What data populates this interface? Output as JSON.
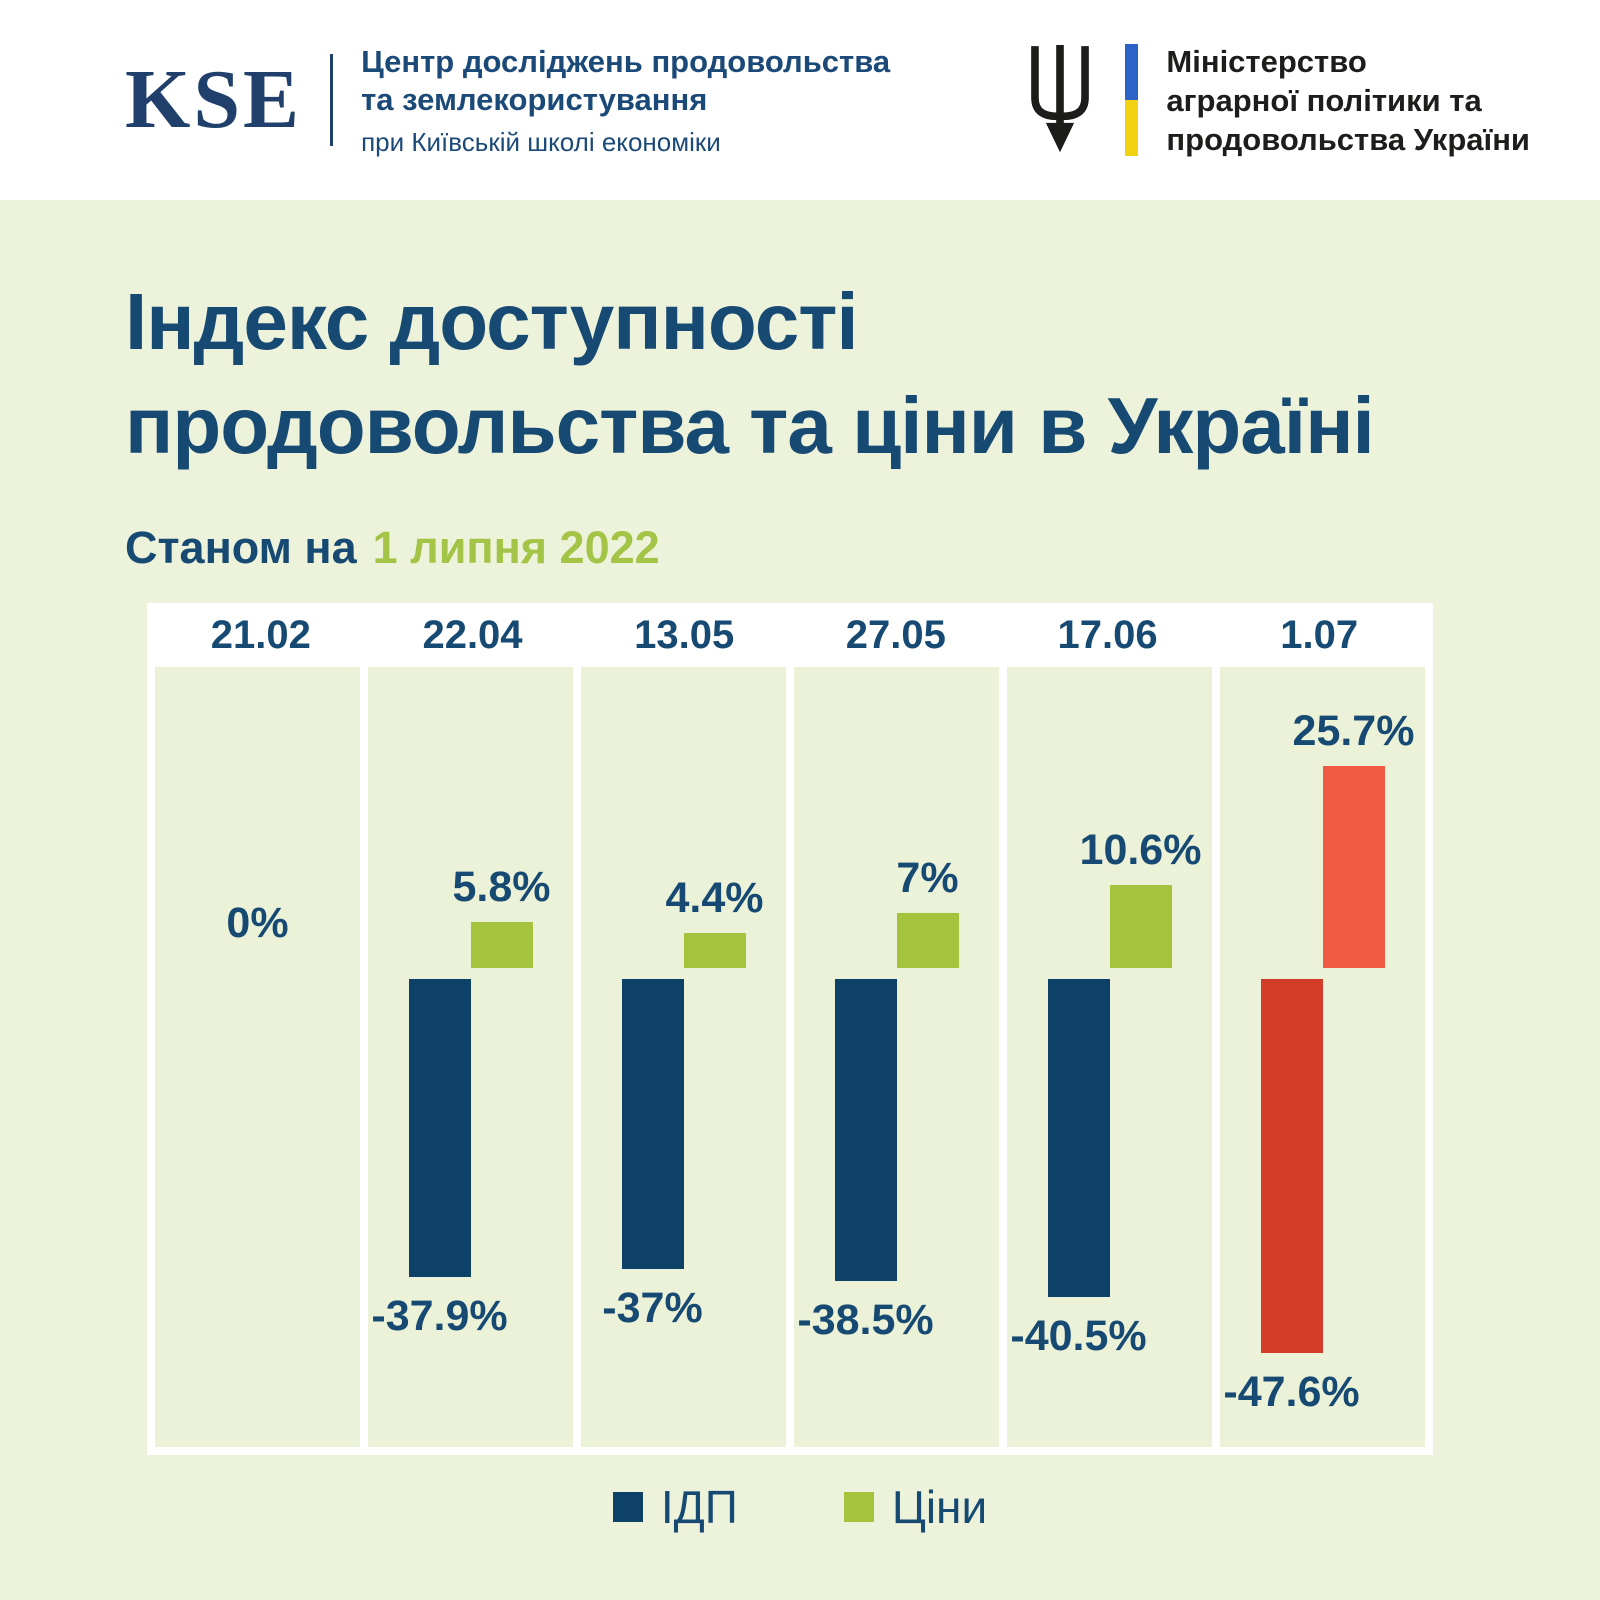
{
  "header": {
    "kse_logo": "KSE",
    "center_name_line1": "Центр досліджень продовольства",
    "center_name_line2": "та землекористування",
    "center_subtitle": "при Київській школі економіки",
    "ministry_line1": "Міністерство",
    "ministry_line2": "аграрної політики та",
    "ministry_line3": "продовольства України"
  },
  "title": {
    "line1": "Індекс доступності",
    "line2": "продовольства та ціни в Україні"
  },
  "subtitle": {
    "prefix": "Станом на",
    "date": "1 липня 2022"
  },
  "chart_data": {
    "type": "bar",
    "categories": [
      "21.02",
      "22.04",
      "13.05",
      "27.05",
      "17.06",
      "1.07"
    ],
    "series": [
      {
        "name": "ІДП",
        "values": [
          0,
          -37.9,
          -37,
          -38.5,
          -40.5,
          -47.6
        ],
        "colors": [
          "#0d4168",
          "#0d4168",
          "#0d4168",
          "#0d4168",
          "#0d4168",
          "#d23c28"
        ]
      },
      {
        "name": "Ціни",
        "values": [
          null,
          5.8,
          4.4,
          7,
          10.6,
          25.7
        ],
        "colors": [
          null,
          "#a5c33c",
          "#a5c33c",
          "#a5c33c",
          "#a5c33c",
          "#f15b44"
        ]
      }
    ],
    "idp_labels": [
      "0%",
      "-37.9%",
      "-37%",
      "-38.5%",
      "-40.5%",
      "-47.6%"
    ],
    "price_labels": [
      null,
      "5.8%",
      "4.4%",
      "7%",
      "10.6%",
      "25.7%"
    ],
    "title": "Індекс доступності продовольства та ціни в Україні",
    "subtitle": "Станом на 1 липня 2022",
    "xlabel": "",
    "ylabel": "",
    "ylim": [
      -55,
      38
    ],
    "baseline": 0,
    "grid": false,
    "legend_position": "bottom",
    "highlight_last_column": true
  },
  "legend": [
    {
      "label": "ІДП",
      "color": "#0d4168"
    },
    {
      "label": "Ціни",
      "color": "#a5c33c"
    }
  ]
}
